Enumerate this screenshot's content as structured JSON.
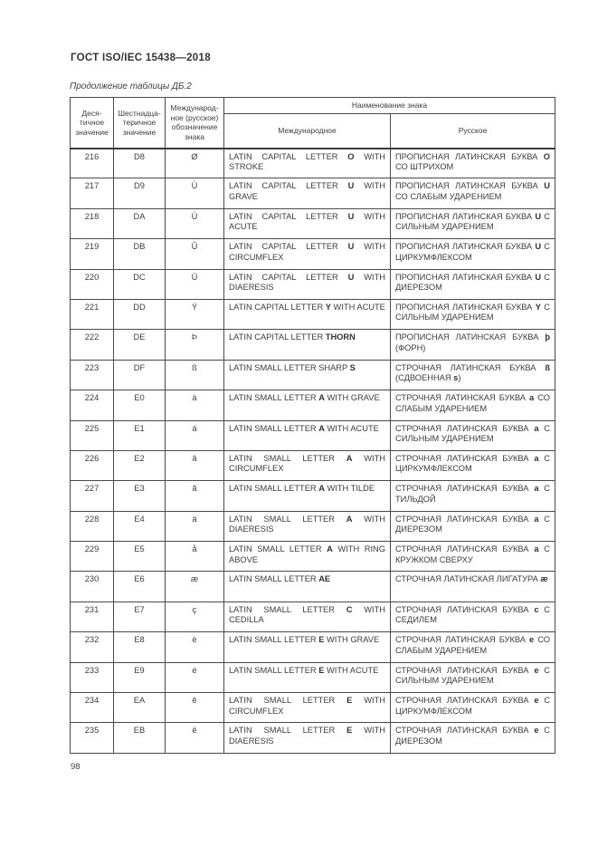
{
  "page": {
    "title": "ГОСТ ISO/IEC 15438—2018",
    "table_caption": "Продолжение таблицы ДБ.2",
    "page_number": "98"
  },
  "colors": {
    "text": "#3d3d3d",
    "border": "#4a4a4a",
    "background": "#ffffff"
  },
  "table": {
    "headers": {
      "dec": "Деся-\nтичное\nзначение",
      "hex": "Шестнадца-\nтеричное\nзначение",
      "designation": "Международ-\nное (русское)\nобозначение\nзнака",
      "name_group": "Наименование знака",
      "intl": "Международное",
      "rus": "Русское"
    },
    "rows": [
      {
        "dec": "216",
        "hex": "D8",
        "glyph": "Ø",
        "intl": [
          {
            "t": "LATIN CAPITAL LETTER "
          },
          {
            "t": "O",
            "b": true
          },
          {
            "t": " WITH STROKE"
          }
        ],
        "rus": [
          {
            "t": "ПРОПИСНАЯ ЛАТИНСКАЯ БУКВА "
          },
          {
            "t": "O",
            "b": true
          },
          {
            "t": " СО ШТРИХОМ"
          }
        ]
      },
      {
        "dec": "217",
        "hex": "D9",
        "glyph": "Ù",
        "intl": [
          {
            "t": "LATIN CAPITAL LETTER "
          },
          {
            "t": "U",
            "b": true
          },
          {
            "t": " WITH GRAVE"
          }
        ],
        "rus": [
          {
            "t": "ПРОПИСНАЯ ЛАТИНСКАЯ БУКВА "
          },
          {
            "t": "U",
            "b": true
          },
          {
            "t": " СО СЛАБЫМ УДАРЕНИЕМ"
          }
        ]
      },
      {
        "dec": "218",
        "hex": "DA",
        "glyph": "Ú",
        "intl": [
          {
            "t": "LATIN CAPITAL LETTER "
          },
          {
            "t": "U",
            "b": true
          },
          {
            "t": " WITH ACUTE"
          }
        ],
        "rus": [
          {
            "t": "ПРОПИСНАЯ ЛАТИНСКАЯ БУКВА "
          },
          {
            "t": "U",
            "b": true
          },
          {
            "t": " С СИЛЬНЫМ УДАРЕНИЕМ"
          }
        ]
      },
      {
        "dec": "219",
        "hex": "DB",
        "glyph": "Û",
        "intl": [
          {
            "t": "LATIN CAPITAL LETTER "
          },
          {
            "t": "U",
            "b": true
          },
          {
            "t": " WITH CIRCUMFLEX"
          }
        ],
        "rus": [
          {
            "t": "ПРОПИСНАЯ ЛАТИНСКАЯ БУКВА "
          },
          {
            "t": "U",
            "b": true
          },
          {
            "t": " С ЦИРКУМФЛЕКСОМ"
          }
        ]
      },
      {
        "dec": "220",
        "hex": "DC",
        "glyph": "Ü",
        "intl": [
          {
            "t": "LATIN CAPITAL LETTER "
          },
          {
            "t": "U",
            "b": true
          },
          {
            "t": " WITH DIAERESIS"
          }
        ],
        "rus": [
          {
            "t": "ПРОПИСНАЯ ЛАТИНСКАЯ БУКВА "
          },
          {
            "t": "U",
            "b": true
          },
          {
            "t": " С ДИЕРЕЗОМ"
          }
        ]
      },
      {
        "dec": "221",
        "hex": "DD",
        "glyph": "Ý",
        "intl": [
          {
            "t": "LATIN CAPITAL LETTER "
          },
          {
            "t": "Y",
            "b": true
          },
          {
            "t": " WITH ACUTE"
          }
        ],
        "rus": [
          {
            "t": "ПРОПИСНАЯ ЛАТИНСКАЯ БУКВА "
          },
          {
            "t": "Y",
            "b": true
          },
          {
            "t": " С СИЛЬНЫМ УДАРЕНИЕМ"
          }
        ]
      },
      {
        "dec": "222",
        "hex": "DE",
        "glyph": "Þ",
        "intl": [
          {
            "t": "LATIN CAPITAL LETTER "
          },
          {
            "t": "THORN",
            "b": true
          }
        ],
        "rus": [
          {
            "t": "ПРОПИСНАЯ ЛАТИНСКАЯ БУКВА "
          },
          {
            "t": "þ",
            "b": true
          },
          {
            "t": " (ФОРН)"
          }
        ]
      },
      {
        "dec": "223",
        "hex": "DF",
        "glyph": "ß",
        "intl": [
          {
            "t": "LATIN SMALL LETTER SHARP "
          },
          {
            "t": "S",
            "b": true
          }
        ],
        "rus": [
          {
            "t": "СТРОЧНАЯ ЛАТИНСКАЯ БУКВА "
          },
          {
            "t": "ß",
            "b": true
          },
          {
            "t": " (СДВОЕННАЯ "
          },
          {
            "t": "s",
            "b": true
          },
          {
            "t": ")"
          }
        ]
      },
      {
        "dec": "224",
        "hex": "E0",
        "glyph": "à",
        "intl": [
          {
            "t": "LATIN SMALL LETTER "
          },
          {
            "t": "A",
            "b": true
          },
          {
            "t": " WITH GRAVE"
          }
        ],
        "rus": [
          {
            "t": "СТРОЧНАЯ ЛАТИНСКАЯ БУКВА "
          },
          {
            "t": "a",
            "b": true
          },
          {
            "t": " СО СЛАБЫМ УДАРЕНИЕМ"
          }
        ]
      },
      {
        "dec": "225",
        "hex": "E1",
        "glyph": "á",
        "intl": [
          {
            "t": "LATIN SMALL LETTER "
          },
          {
            "t": "A",
            "b": true
          },
          {
            "t": " WITH ACUTE"
          }
        ],
        "rus": [
          {
            "t": "СТРОЧНАЯ ЛАТИНСКАЯ БУКВА "
          },
          {
            "t": "a",
            "b": true
          },
          {
            "t": " С СИЛЬНЫМ УДАРЕНИЕМ"
          }
        ]
      },
      {
        "dec": "226",
        "hex": "E2",
        "glyph": "â",
        "intl": [
          {
            "t": "LATIN SMALL LETTER "
          },
          {
            "t": "A",
            "b": true
          },
          {
            "t": " WITH CIRCUMFLEX"
          }
        ],
        "rus": [
          {
            "t": "СТРОЧНАЯ ЛАТИНСКАЯ БУКВА "
          },
          {
            "t": "a",
            "b": true
          },
          {
            "t": " С ЦИРКУМФЛЕКСОМ"
          }
        ]
      },
      {
        "dec": "227",
        "hex": "E3",
        "glyph": "ã",
        "intl": [
          {
            "t": "LATIN SMALL LETTER "
          },
          {
            "t": "A",
            "b": true
          },
          {
            "t": " WITH TILDE"
          }
        ],
        "rus": [
          {
            "t": "СТРОЧНАЯ ЛАТИНСКАЯ БУКВА "
          },
          {
            "t": "a",
            "b": true
          },
          {
            "t": " С ТИЛЬДОЙ"
          }
        ]
      },
      {
        "dec": "228",
        "hex": "E4",
        "glyph": "ä",
        "intl": [
          {
            "t": "LATIN SMALL LETTER "
          },
          {
            "t": "A",
            "b": true
          },
          {
            "t": " WITH DIAERESIS"
          }
        ],
        "rus": [
          {
            "t": "СТРОЧНАЯ ЛАТИНСКАЯ БУКВА "
          },
          {
            "t": "a",
            "b": true
          },
          {
            "t": " С ДИЕРЕЗОМ"
          }
        ]
      },
      {
        "dec": "229",
        "hex": "E5",
        "glyph": "å",
        "intl": [
          {
            "t": "LATIN SMALL LETTER "
          },
          {
            "t": "A",
            "b": true
          },
          {
            "t": " WITH RING ABOVE"
          }
        ],
        "rus": [
          {
            "t": "СТРОЧНАЯ ЛАТИНСКАЯ БУКВА "
          },
          {
            "t": "a",
            "b": true
          },
          {
            "t": " С КРУЖКОМ СВЕРХУ"
          }
        ]
      },
      {
        "dec": "230",
        "hex": "E6",
        "glyph": "æ",
        "intl": [
          {
            "t": "LATIN SMALL LETTER "
          },
          {
            "t": "AE",
            "b": true
          }
        ],
        "rus": [
          {
            "t": "СТРОЧНАЯ ЛАТИНСКАЯ ЛИГАТУРА "
          },
          {
            "t": "æ",
            "b": true
          }
        ]
      },
      {
        "dec": "231",
        "hex": "E7",
        "glyph": "ç",
        "intl": [
          {
            "t": "LATIN SMALL LETTER "
          },
          {
            "t": "C",
            "b": true
          },
          {
            "t": " WITH CEDILLA"
          }
        ],
        "rus": [
          {
            "t": "СТРОЧНАЯ ЛАТИНСКАЯ БУКВА "
          },
          {
            "t": "c",
            "b": true
          },
          {
            "t": " С СЕДИЛЕМ"
          }
        ]
      },
      {
        "dec": "232",
        "hex": "E8",
        "glyph": "è",
        "intl": [
          {
            "t": "LATIN SMALL LETTER "
          },
          {
            "t": "E",
            "b": true
          },
          {
            "t": " WITH GRAVE"
          }
        ],
        "rus": [
          {
            "t": "СТРОЧНАЯ ЛАТИНСКАЯ БУКВА "
          },
          {
            "t": "e",
            "b": true
          },
          {
            "t": " СО СЛАБЫМ УДАРЕНИЕМ"
          }
        ]
      },
      {
        "dec": "233",
        "hex": "E9",
        "glyph": "é",
        "intl": [
          {
            "t": "LATIN SMALL LETTER "
          },
          {
            "t": "E",
            "b": true
          },
          {
            "t": " WITH ACUTE"
          }
        ],
        "rus": [
          {
            "t": "СТРОЧНАЯ ЛАТИНСКАЯ БУКВА "
          },
          {
            "t": "e",
            "b": true
          },
          {
            "t": " С СИЛЬНЫМ УДАРЕНИЕМ"
          }
        ]
      },
      {
        "dec": "234",
        "hex": "EA",
        "glyph": "ê",
        "intl": [
          {
            "t": "LATIN SMALL LETTER "
          },
          {
            "t": "E",
            "b": true
          },
          {
            "t": " WITH CIRCUMFLEX"
          }
        ],
        "rus": [
          {
            "t": "СТРОЧНАЯ ЛАТИНСКАЯ БУКВА "
          },
          {
            "t": "e",
            "b": true
          },
          {
            "t": " С ЦИРКУМФЛЕКСОМ"
          }
        ]
      },
      {
        "dec": "235",
        "hex": "EB",
        "glyph": "ë",
        "intl": [
          {
            "t": "LATIN SMALL LETTER "
          },
          {
            "t": "E",
            "b": true
          },
          {
            "t": " WITH DIAERESIS"
          }
        ],
        "rus": [
          {
            "t": "СТРОЧНАЯ ЛАТИНСКАЯ БУКВА "
          },
          {
            "t": "e",
            "b": true
          },
          {
            "t": " С ДИЕРЕЗОМ"
          }
        ]
      }
    ]
  }
}
